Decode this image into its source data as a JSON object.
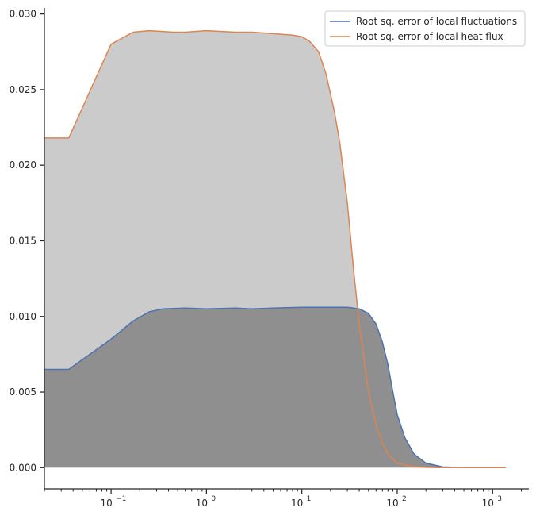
{
  "chart_data": {
    "type": "area",
    "x_scale": "log",
    "xlim": [
      0.02,
      2400
    ],
    "ylim": [
      -0.0014,
      0.0304
    ],
    "x_ticks": [
      {
        "value": 0.1,
        "base": "10",
        "exp": "−1"
      },
      {
        "value": 1,
        "base": "10",
        "exp": "0"
      },
      {
        "value": 10,
        "base": "10",
        "exp": "1"
      },
      {
        "value": 100,
        "base": "10",
        "exp": "2"
      },
      {
        "value": 1000,
        "base": "10",
        "exp": "3"
      }
    ],
    "y_ticks": [
      {
        "value": 0.0,
        "label": "0.000"
      },
      {
        "value": 0.005,
        "label": "0.005"
      },
      {
        "value": 0.01,
        "label": "0.010"
      },
      {
        "value": 0.015,
        "label": "0.015"
      },
      {
        "value": 0.02,
        "label": "0.020"
      },
      {
        "value": 0.025,
        "label": "0.025"
      },
      {
        "value": 0.03,
        "label": "0.030"
      }
    ],
    "legend_position": "top-right",
    "grid": false,
    "series": [
      {
        "name": "Root sq. error of local fluctuations",
        "color": "#4c72b0",
        "fill": "#8f8f8f",
        "points": [
          [
            0.02,
            0.0065
          ],
          [
            0.036,
            0.0065
          ],
          [
            0.1,
            0.0085
          ],
          [
            0.17,
            0.0097
          ],
          [
            0.25,
            0.0103
          ],
          [
            0.35,
            0.0105
          ],
          [
            0.6,
            0.01055
          ],
          [
            1,
            0.0105
          ],
          [
            2,
            0.01055
          ],
          [
            3,
            0.0105
          ],
          [
            5,
            0.01055
          ],
          [
            10,
            0.0106
          ],
          [
            20,
            0.0106
          ],
          [
            30,
            0.0106
          ],
          [
            40,
            0.0105
          ],
          [
            50,
            0.0102
          ],
          [
            60,
            0.0095
          ],
          [
            70,
            0.0083
          ],
          [
            80,
            0.0068
          ],
          [
            90,
            0.005
          ],
          [
            100,
            0.0035
          ],
          [
            120,
            0.002
          ],
          [
            150,
            0.0009
          ],
          [
            200,
            0.0003
          ],
          [
            300,
            5e-05
          ],
          [
            500,
            0.0
          ],
          [
            1370,
            0.0
          ]
        ]
      },
      {
        "name": "Root sq. error of local heat flux",
        "color": "#dd8452",
        "fill": "#cbcbcb",
        "points": [
          [
            0.02,
            0.0218
          ],
          [
            0.036,
            0.0218
          ],
          [
            0.1,
            0.028
          ],
          [
            0.17,
            0.0288
          ],
          [
            0.25,
            0.0289
          ],
          [
            0.45,
            0.0288
          ],
          [
            0.6,
            0.0288
          ],
          [
            1,
            0.0289
          ],
          [
            2,
            0.0288
          ],
          [
            3,
            0.0288
          ],
          [
            5,
            0.0287
          ],
          [
            8,
            0.0286
          ],
          [
            10,
            0.0285
          ],
          [
            12,
            0.0282
          ],
          [
            15,
            0.0275
          ],
          [
            18,
            0.026
          ],
          [
            22,
            0.0235
          ],
          [
            25,
            0.0215
          ],
          [
            30,
            0.0175
          ],
          [
            35,
            0.013
          ],
          [
            40,
            0.0095
          ],
          [
            50,
            0.005
          ],
          [
            60,
            0.0028
          ],
          [
            70,
            0.0016
          ],
          [
            80,
            0.0009
          ],
          [
            100,
            0.0003
          ],
          [
            150,
            5e-05
          ],
          [
            250,
            0.0
          ],
          [
            1370,
            0.0
          ]
        ]
      }
    ]
  }
}
